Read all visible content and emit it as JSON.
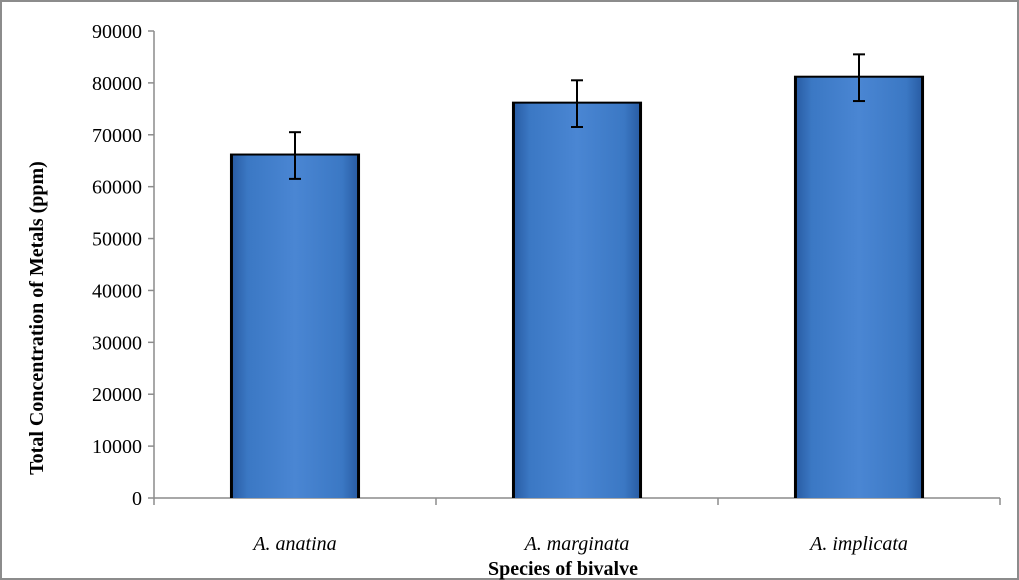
{
  "chart_data": {
    "type": "bar",
    "categories": [
      "A. anatina",
      "A. marginata",
      "A. implicata"
    ],
    "values": [
      66000,
      76000,
      81000
    ],
    "error": [
      4500,
      4500,
      4500
    ],
    "xlabel": "Species of bivalve",
    "ylabel": "Total Concentration of Metals (ppm)",
    "ylim": [
      0,
      90000
    ],
    "yticks": [
      0,
      10000,
      20000,
      30000,
      40000,
      50000,
      60000,
      70000,
      80000,
      90000
    ],
    "grid": false,
    "legend": "none",
    "bar_color": "#3b78c4",
    "bar_edge_color": "#000000"
  }
}
